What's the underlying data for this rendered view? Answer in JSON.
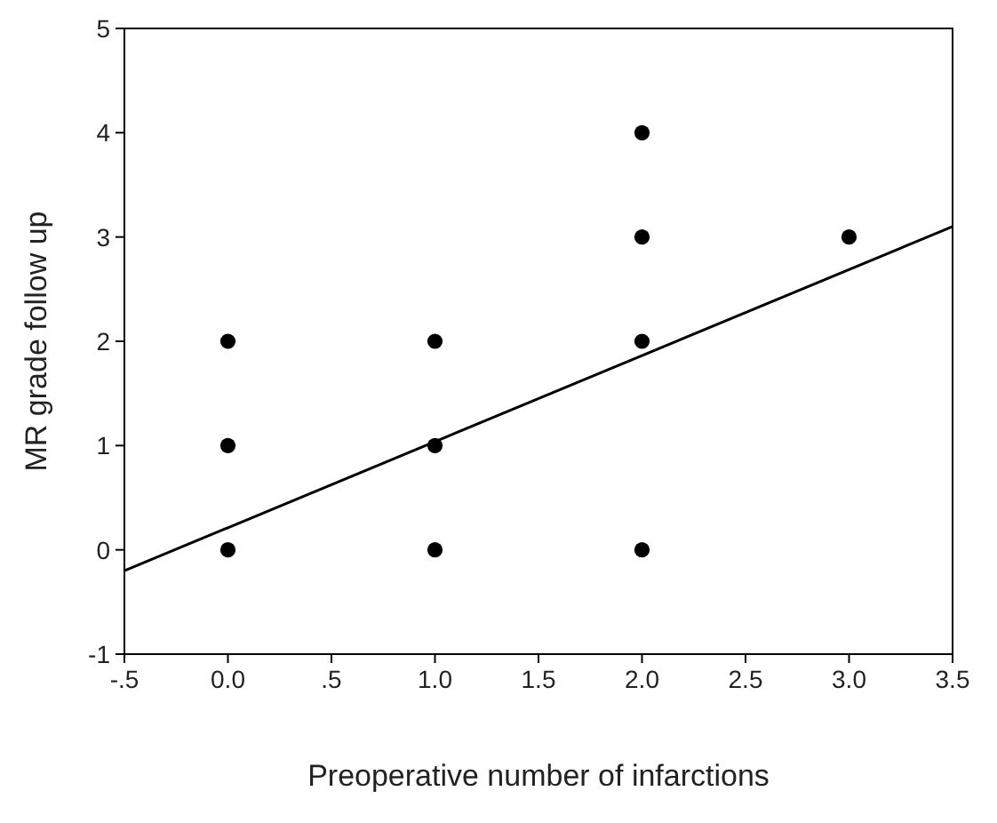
{
  "chart_data": {
    "type": "scatter",
    "xlabel": "Preoperative number of infarctions",
    "ylabel": "MR grade follow up",
    "series": [
      {
        "marker": "circle",
        "color": "#000000",
        "x": [
          0,
          0,
          0,
          1,
          1,
          1,
          2,
          2,
          2,
          2,
          3
        ],
        "values": [
          0,
          1,
          2,
          0,
          1,
          2,
          0,
          2,
          3,
          4,
          3
        ]
      },
      {
        "type": "line",
        "marker": "none",
        "color": "#000000",
        "x": [
          -0.5,
          3.5
        ],
        "values": [
          -0.2,
          3.1
        ]
      }
    ],
    "xlim": [
      -0.5,
      3.5
    ],
    "xticks": [
      {
        "value": -0.5,
        "label": "-.5"
      },
      {
        "value": 0,
        "label": "0.0"
      },
      {
        "value": 0.5,
        "label": ".5"
      },
      {
        "value": 1,
        "label": "1.0"
      },
      {
        "value": 1.5,
        "label": "1.5"
      },
      {
        "value": 2,
        "label": "2.0"
      },
      {
        "value": 2.5,
        "label": "2.5"
      },
      {
        "value": 3,
        "label": "3.0"
      },
      {
        "value": 3.5,
        "label": "3.5"
      }
    ],
    "ylim": [
      -1,
      5
    ],
    "yticks": [
      -1,
      0,
      1,
      2,
      3,
      4,
      5
    ],
    "line_style": "solid",
    "grid": false
  }
}
